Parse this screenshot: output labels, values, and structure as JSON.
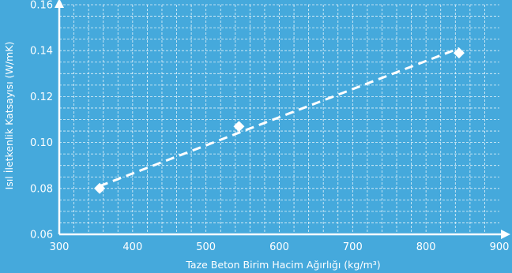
{
  "chart_data": {
    "type": "scatter",
    "title": "",
    "xlabel": "Taze Beton Birim Hacim Ağırlığı (kg/m³)",
    "ylabel": "Isıl İletkenlik Katsayısı (W/mK)",
    "xlim": [
      300,
      900
    ],
    "ylim": [
      0.06,
      0.16
    ],
    "x_ticks": [
      "300",
      "400",
      "500",
      "600",
      "700",
      "800",
      "900"
    ],
    "y_ticks": [
      "0.06",
      "0.08",
      "0.10",
      "0.12",
      "0.14",
      "0.16"
    ],
    "series": [
      {
        "x": [
          355,
          545,
          845
        ],
        "y": [
          0.08,
          0.107,
          0.139
        ]
      }
    ],
    "trendline": {
      "style": "dashed",
      "x": [
        355,
        845
      ],
      "y": [
        0.081,
        0.141
      ]
    },
    "grid": true,
    "legend": "none",
    "colors": {
      "background": "#45a9dc",
      "foreground": "#ffffff"
    }
  }
}
